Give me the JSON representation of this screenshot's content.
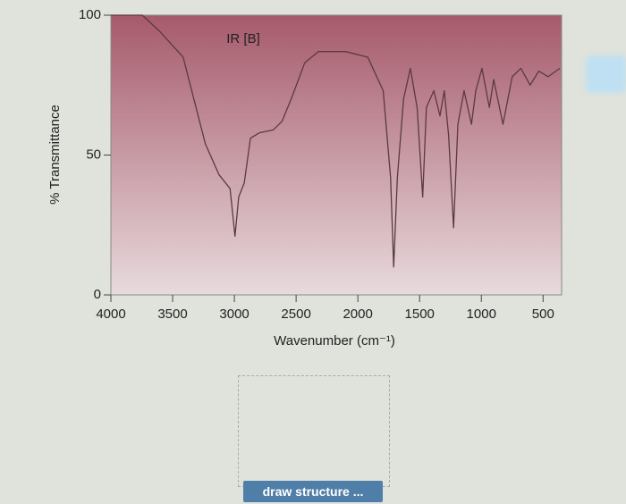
{
  "chart_data": {
    "type": "line",
    "title": "IR [B]",
    "x_label": "Wavenumber (cm⁻¹)",
    "y_label": "% Transmittance",
    "x": [
      4000,
      3745,
      3600,
      3415,
      3235,
      3125,
      3035,
      2995,
      2965,
      2920,
      2870,
      2795,
      2685,
      2615,
      2540,
      2430,
      2320,
      2100,
      1920,
      1795,
      1735,
      1710,
      1680,
      1630,
      1575,
      1520,
      1475,
      1445,
      1385,
      1335,
      1300,
      1265,
      1225,
      1190,
      1140,
      1080,
      1045,
      995,
      935,
      900,
      825,
      750,
      680,
      605,
      535,
      460,
      365
    ],
    "values": [
      100,
      100,
      94,
      85,
      54,
      43,
      38,
      21,
      35,
      40,
      56,
      58,
      59,
      62,
      70,
      83,
      87,
      87,
      85,
      73,
      42,
      10,
      42,
      70,
      81,
      67,
      35,
      67,
      73,
      64,
      73,
      57,
      24,
      61,
      73,
      61,
      73,
      81,
      67,
      77,
      61,
      78,
      81,
      75,
      80,
      78,
      81
    ],
    "color": "#5a3a40",
    "xlim": [
      4000,
      350
    ],
    "xticks": [
      4000,
      3500,
      3000,
      2500,
      2000,
      1500,
      1000,
      500
    ],
    "ylim": [
      0,
      100
    ],
    "yticks": [
      0,
      50,
      100
    ]
  },
  "button": {
    "label": "draw structure ..."
  }
}
